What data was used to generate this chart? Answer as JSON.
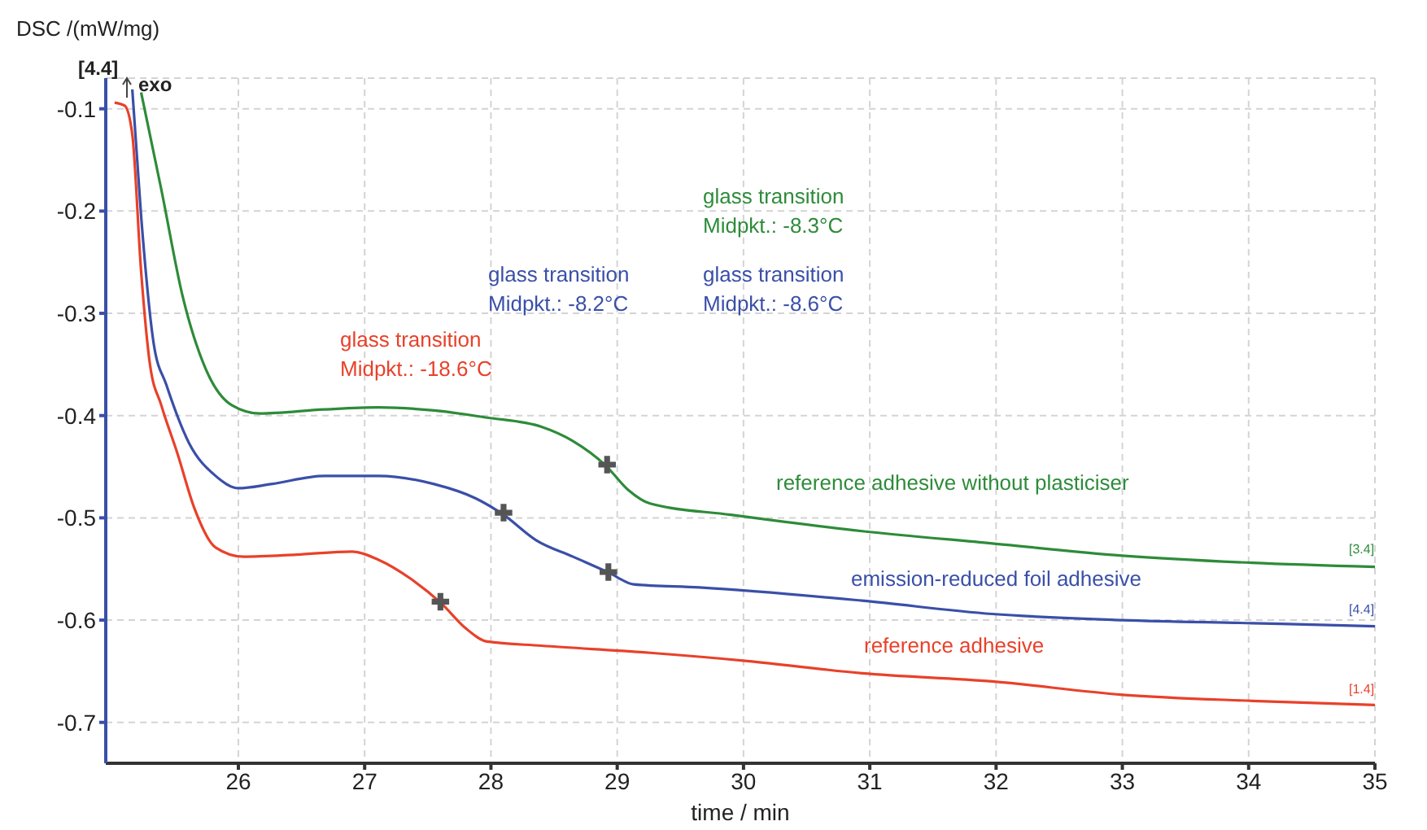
{
  "chart_data": {
    "type": "line",
    "xlabel": "time / min",
    "ylabel": "DSC /(mW/mg)",
    "xlim": [
      24.95,
      35
    ],
    "ylim": [
      -0.74,
      -0.07
    ],
    "xticks": [
      26,
      27,
      28,
      29,
      30,
      31,
      32,
      33,
      34,
      35
    ],
    "yticks": [
      -0.1,
      -0.2,
      -0.3,
      -0.4,
      -0.5,
      -0.6,
      -0.7
    ],
    "grid": true,
    "legend": false,
    "marker": "none",
    "line_style": "solid",
    "annotations": [
      "[4.4]",
      "exo",
      "glass transition\nMidpkt.: -18.6°C",
      "glass transition\nMidpkt.: -8.2°C",
      "glass transition\nMidpkt.: -8.6°C",
      "glass transition\nMidpkt.: -8.3°C",
      "[3.4]",
      "[4.4]",
      "[1.4]"
    ],
    "series": [
      {
        "name": "reference adhesive without plasticiser",
        "color": "#2e8b3a",
        "x": [
          25.23,
          25.39,
          25.56,
          25.74,
          25.95,
          26.17,
          26.68,
          27.11,
          27.55,
          27.97,
          28.4,
          28.65,
          28.91,
          29.09,
          29.26,
          29.9,
          30.94,
          31.97,
          33.0,
          34.03,
          35.0
        ],
        "values": [
          -0.084,
          -0.179,
          -0.284,
          -0.354,
          -0.39,
          -0.398,
          -0.394,
          -0.392,
          -0.395,
          -0.402,
          -0.411,
          -0.425,
          -0.449,
          -0.473,
          -0.486,
          -0.497,
          -0.513,
          -0.525,
          -0.537,
          -0.544,
          -0.548
        ]
      },
      {
        "name": "emission-reduced foil adhesive",
        "color": "#3a4fa8",
        "x": [
          25.16,
          25.23,
          25.33,
          25.43,
          25.61,
          25.82,
          26.0,
          26.26,
          26.68,
          27.11,
          27.55,
          27.88,
          28.1,
          28.36,
          28.65,
          28.94,
          29.13,
          29.65,
          30.94,
          31.97,
          33.0,
          34.03,
          35.0
        ],
        "values": [
          -0.081,
          -0.205,
          -0.33,
          -0.37,
          -0.427,
          -0.459,
          -0.471,
          -0.467,
          -0.459,
          -0.459,
          -0.467,
          -0.481,
          -0.497,
          -0.522,
          -0.538,
          -0.554,
          -0.565,
          -0.568,
          -0.581,
          -0.594,
          -0.6,
          -0.603,
          -0.606
        ]
      },
      {
        "name": "reference adhesive",
        "color": "#e8412a",
        "x": [
          25.02,
          25.1,
          25.16,
          25.23,
          25.3,
          25.39,
          25.52,
          25.65,
          25.82,
          26.04,
          26.46,
          26.9,
          27.11,
          27.37,
          27.61,
          27.8,
          27.97,
          28.4,
          29.26,
          30.03,
          30.94,
          31.97,
          33.0,
          34.03,
          35.0
        ],
        "values": [
          -0.094,
          -0.097,
          -0.125,
          -0.259,
          -0.35,
          -0.39,
          -0.438,
          -0.49,
          -0.529,
          -0.538,
          -0.536,
          -0.533,
          -0.541,
          -0.56,
          -0.584,
          -0.608,
          -0.621,
          -0.625,
          -0.632,
          -0.64,
          -0.652,
          -0.66,
          -0.673,
          -0.679,
          -0.683
        ]
      },
      {
        "type": "scatter",
        "marker": "cross",
        "color": "#555555",
        "x": [
          27.6,
          28.1,
          28.93,
          28.92
        ],
        "values": [
          -0.582,
          -0.495,
          -0.553,
          -0.448
        ]
      }
    ]
  }
}
